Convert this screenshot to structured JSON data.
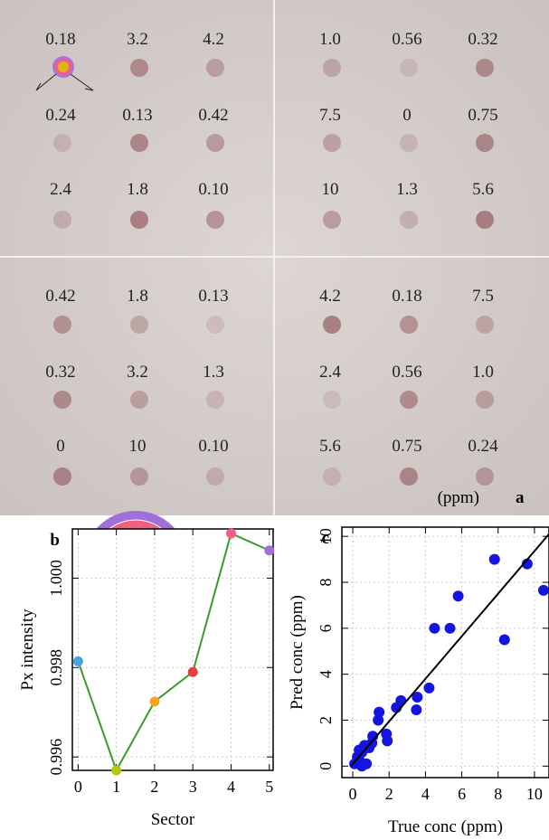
{
  "photo": {
    "quadrants": [
      {
        "rows": [
          [
            "0.18",
            "3.2",
            "4.2"
          ],
          [
            "0.24",
            "0.13",
            "0.42"
          ],
          [
            "2.4",
            "1.8",
            "0.10"
          ]
        ]
      },
      {
        "rows": [
          [
            "1.0",
            "0.56",
            "0.32"
          ],
          [
            "7.5",
            "0",
            "0.75"
          ],
          [
            "10",
            "1.3",
            "5.6"
          ]
        ]
      },
      {
        "rows": [
          [
            "0.42",
            "1.8",
            "0.13"
          ],
          [
            "0.32",
            "3.2",
            "1.3"
          ],
          [
            "0",
            "10",
            "0.10"
          ]
        ]
      },
      {
        "rows": [
          [
            "4.2",
            "0.18",
            "7.5"
          ],
          [
            "2.4",
            "0.56",
            "1.0"
          ],
          [
            "5.6",
            "0.75",
            "0.24"
          ]
        ]
      }
    ],
    "unit": "(ppm)",
    "panel_label": "a"
  },
  "chart_data": [
    {
      "type": "line",
      "panel_label": "b",
      "xlabel": "Sector",
      "ylabel": "Px intensity",
      "x": [
        0,
        1,
        2,
        3,
        4,
        5
      ],
      "series": [
        {
          "color": "#3a9a2a",
          "point_colors": [
            "#4aa3df",
            "#b5c900",
            "#f4a820",
            "#e04040",
            "#f06080",
            "#a070d8"
          ],
          "values": [
            0.99814,
            0.9957,
            0.99724,
            0.9979,
            1.001,
            1.00062
          ]
        }
      ],
      "xlim": [
        -0.15,
        5.1
      ],
      "ylim": [
        0.9957,
        1.0011
      ],
      "xticks": [
        0,
        1,
        2,
        3,
        4,
        5
      ],
      "yticks": [
        0.996,
        0.998,
        {
          "value": 1,
          "label": "1.000"
        }
      ],
      "grid": true
    },
    {
      "type": "scatter",
      "panel_label": "c",
      "xlabel": "True conc (ppm)",
      "ylabel": "Pred conc (ppm)",
      "series": [
        {
          "type": "scatter",
          "color": "#1515e0",
          "x": [
            0.1,
            0.25,
            0.35,
            0.5,
            0.65,
            0.5,
            0.75,
            0.4,
            0.9,
            1.05,
            1.1,
            1.4,
            1.45,
            1.85,
            1.9,
            2.4,
            2.65,
            3.55,
            3.5,
            4.2,
            4.5,
            5.35,
            5.8,
            7.8,
            8.35,
            9.6,
            10.5
          ],
          "values": [
            0.1,
            0.4,
            0.7,
            0.6,
            0.9,
            0.0,
            0.1,
            0.2,
            0.8,
            1.0,
            1.3,
            2.0,
            2.35,
            1.4,
            1.1,
            2.55,
            2.85,
            3.0,
            2.45,
            3.4,
            6.0,
            6.0,
            7.4,
            9.0,
            5.5,
            8.8,
            7.65
          ]
        },
        {
          "type": "line",
          "color": "#000000",
          "x": [
            -0.1,
            10.8
          ],
          "values": [
            0.0,
            10.1
          ]
        }
      ],
      "xlim": [
        -0.6,
        10.8
      ],
      "ylim": [
        -0.5,
        10.4
      ],
      "xticks": [
        0,
        2,
        4,
        6,
        8,
        10
      ],
      "yticks": [
        0,
        2,
        4,
        6,
        8,
        10
      ],
      "grid": true
    }
  ]
}
